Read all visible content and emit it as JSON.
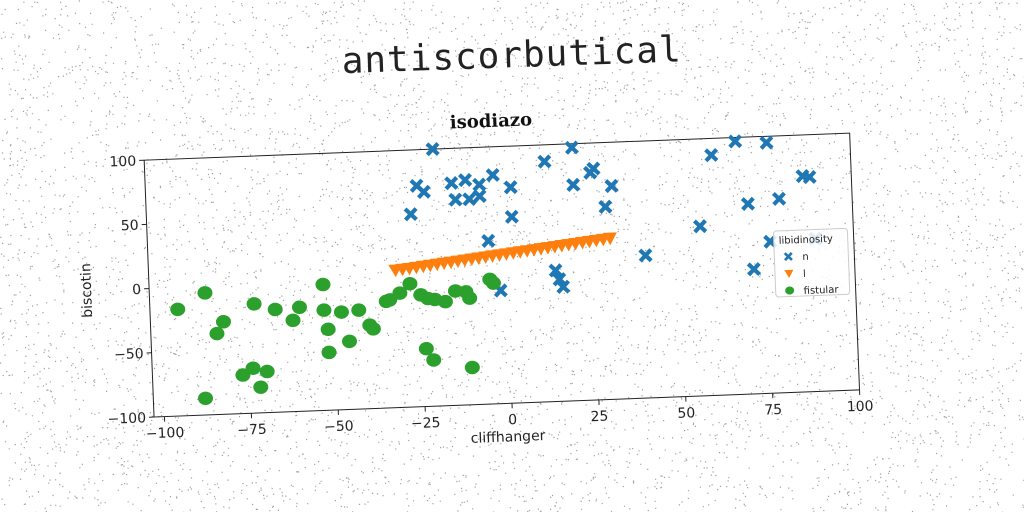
{
  "figure_title": "antiscorbutical",
  "chart_data": {
    "type": "scatter",
    "title": "isodiazo",
    "xlabel": "cliffhanger",
    "ylabel": "biscotin",
    "xlim": [
      -103,
      100
    ],
    "ylim": [
      -100,
      100
    ],
    "xticks": [
      -100,
      -75,
      -50,
      -25,
      0,
      25,
      50,
      75,
      100
    ],
    "yticks": [
      -100,
      -50,
      0,
      50,
      100
    ],
    "xtick_labels": [
      "−100",
      "−75",
      "−50",
      "−25",
      "0",
      "25",
      "50",
      "75",
      "100"
    ],
    "ytick_labels": [
      "−100",
      "−50",
      "0",
      "50",
      "100"
    ],
    "grid": false,
    "legend": {
      "title": "libidinosity",
      "position": "right"
    },
    "series": [
      {
        "name": "n",
        "marker": "x",
        "color": "#1f77b4",
        "points": [
          [
            -20,
            100
          ],
          [
            -25,
            72
          ],
          [
            -23,
            67
          ],
          [
            -27,
            50
          ],
          [
            -15,
            73
          ],
          [
            -11,
            75
          ],
          [
            -7,
            71
          ],
          [
            -14,
            60
          ],
          [
            -10,
            60
          ],
          [
            -7,
            62
          ],
          [
            -3,
            78
          ],
          [
            2,
            68
          ],
          [
            2,
            45
          ],
          [
            -5,
            27
          ],
          [
            12,
            87
          ],
          [
            20,
            97
          ],
          [
            26,
            80
          ],
          [
            25,
            77
          ],
          [
            31,
            66
          ],
          [
            20,
            68
          ],
          [
            29,
            50
          ],
          [
            14,
            2
          ],
          [
            15,
            -5
          ],
          [
            16,
            -11
          ],
          [
            -2,
            -12
          ],
          [
            40,
            11
          ],
          [
            56,
            32
          ],
          [
            60,
            87
          ],
          [
            67,
            97
          ],
          [
            76,
            95
          ],
          [
            70,
            48
          ],
          [
            79,
            51
          ],
          [
            86,
            68
          ],
          [
            88,
            67
          ],
          [
            71,
            -3
          ],
          [
            76,
            18
          ],
          [
            89,
            19
          ]
        ]
      },
      {
        "name": "l",
        "marker": "v",
        "color": "#ff7f0e",
        "points": [
          [
            -32,
            7
          ],
          [
            -30,
            7.5
          ],
          [
            -28,
            8
          ],
          [
            -26,
            8.6
          ],
          [
            -24,
            9.2
          ],
          [
            -22,
            9.8
          ],
          [
            -20,
            10.4
          ],
          [
            -18,
            11
          ],
          [
            -16,
            11.6
          ],
          [
            -14,
            12.2
          ],
          [
            -12,
            12.8
          ],
          [
            -10,
            13.4
          ],
          [
            -8,
            14
          ],
          [
            -6,
            14.6
          ],
          [
            -4,
            15.2
          ],
          [
            -2,
            15.8
          ],
          [
            0,
            16.4
          ],
          [
            2,
            17
          ],
          [
            4,
            17.6
          ],
          [
            6,
            18.2
          ],
          [
            8,
            18.8
          ],
          [
            10,
            19.4
          ],
          [
            12,
            20
          ],
          [
            14,
            20.6
          ],
          [
            16,
            21.2
          ],
          [
            18,
            21.8
          ],
          [
            20,
            22.4
          ],
          [
            22,
            23
          ],
          [
            24,
            23.6
          ],
          [
            26,
            24.2
          ],
          [
            28,
            24.8
          ],
          [
            30,
            25.4
          ]
        ]
      },
      {
        "name": "fistular",
        "marker": "o",
        "color": "#2ca02c",
        "points": [
          [
            -95,
            -17
          ],
          [
            -87,
            -5
          ],
          [
            -84,
            -37
          ],
          [
            -82,
            -28
          ],
          [
            -73,
            -15
          ],
          [
            -67,
            -20
          ],
          [
            -62,
            -29
          ],
          [
            -60,
            -19
          ],
          [
            -53,
            -22
          ],
          [
            -52,
            -37
          ],
          [
            -48,
            -24
          ],
          [
            -53,
            -2
          ],
          [
            -46,
            -47
          ],
          [
            -52,
            -55
          ],
          [
            -43,
            -23
          ],
          [
            -40,
            -35
          ],
          [
            -39,
            -38
          ],
          [
            -74,
            -65
          ],
          [
            -77,
            -70
          ],
          [
            -70,
            -68
          ],
          [
            -72,
            -80
          ],
          [
            -88,
            -87
          ],
          [
            -35,
            -17
          ],
          [
            -34,
            -16
          ],
          [
            -31,
            -11
          ],
          [
            -28,
            -4
          ],
          [
            -25,
            -13
          ],
          [
            -23,
            -16
          ],
          [
            -21,
            -17
          ],
          [
            -18,
            -19
          ],
          [
            -15,
            -11
          ],
          [
            -12,
            -12
          ],
          [
            -11,
            -17
          ],
          [
            -5,
            -3
          ],
          [
            -4,
            -6
          ],
          [
            -24,
            -55
          ],
          [
            -22,
            -64
          ],
          [
            -11,
            -71
          ]
        ]
      }
    ]
  }
}
